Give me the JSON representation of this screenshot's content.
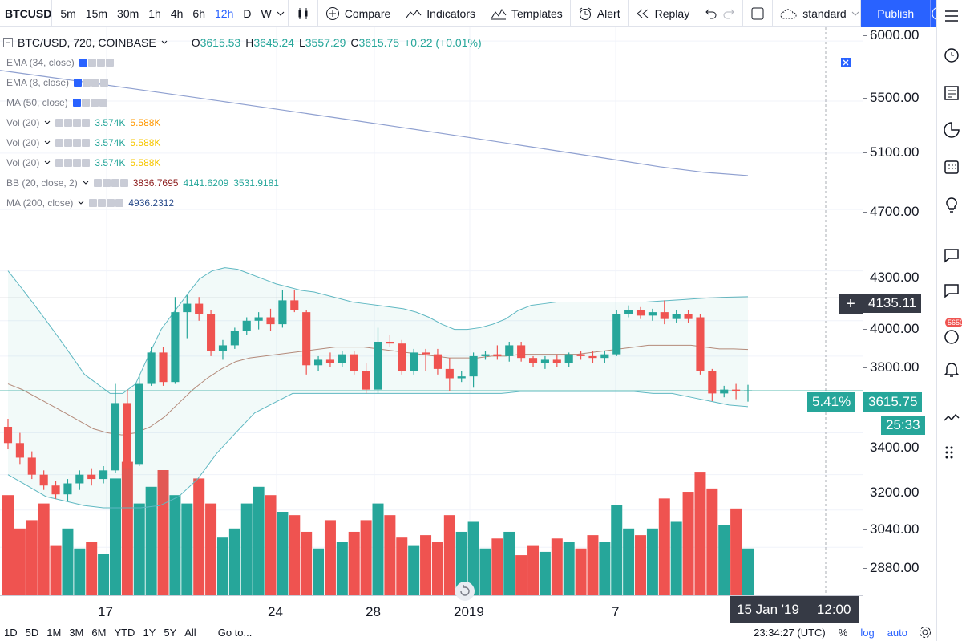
{
  "toolbar": {
    "symbol": "BTCUSD",
    "timeframes": [
      "5m",
      "15m",
      "30m",
      "1h",
      "4h",
      "6h",
      "12h",
      "D",
      "W"
    ],
    "active_timeframe": "12h",
    "compare_label": "Compare",
    "indicators_label": "Indicators",
    "templates_label": "Templates",
    "alert_label": "Alert",
    "replay_label": "Replay",
    "layout_label": "standard",
    "publish_label": "Publish"
  },
  "legend": {
    "symbol_line": "BTC/USD, 720, COINBASE",
    "o_label": "O",
    "o_value": "3615.53",
    "h_label": "H",
    "h_value": "3645.24",
    "l_label": "L",
    "l_value": "3557.29",
    "c_label": "C",
    "c_value": "3615.75",
    "change": "+0.22 (+0.01%)",
    "indicators": [
      {
        "name": "EMA (34, close)"
      },
      {
        "name": "EMA (8, close)"
      },
      {
        "name": "MA (50, close)"
      },
      {
        "name": "Vol (20)",
        "v1": "3.574K",
        "v2": "5.588K"
      },
      {
        "name": "Vol (20)",
        "v1": "3.574K",
        "v2": "5.588K"
      },
      {
        "name": "Vol (20)",
        "v1": "3.574K",
        "v2": "5.588K"
      },
      {
        "name": "BB (20, close, 2)",
        "v1": "3836.7695",
        "v2": "4141.6209",
        "v3": "3531.9181"
      },
      {
        "name": "MA (200, close)",
        "v1": "4936.2312"
      }
    ]
  },
  "price_axis": {
    "labels": [
      "6000.00",
      "5500.00",
      "5100.00",
      "4700.00",
      "4300.00",
      "4000.00",
      "3800.00",
      "3400.00",
      "3200.00",
      "3040.00",
      "2880.00"
    ],
    "crosshair_price": "4135.11",
    "change_pct": "5.41%",
    "last_price": "3615.75",
    "countdown": "25:33",
    "alert_count": "5650"
  },
  "time_axis": {
    "labels": [
      "17",
      "24",
      "28",
      "2019",
      "7"
    ],
    "crosshair_date": "15 Jan '19",
    "crosshair_time": "12:00"
  },
  "bottom": {
    "ranges": [
      "1D",
      "5D",
      "1M",
      "3M",
      "6M",
      "YTD",
      "1Y",
      "5Y",
      "All"
    ],
    "goto": "Go to...",
    "clock": "23:34:27 (UTC)",
    "percent": "%",
    "log": "log",
    "auto": "auto"
  },
  "colors": {
    "up": "#26a69a",
    "down": "#ef5350",
    "accent": "#2962ff"
  },
  "chart_data": {
    "type": "candlestick",
    "title": "BTC/USD, 720, COINBASE",
    "interval": "12h",
    "y_scale": "log",
    "ylim": [
      2750,
      6050
    ],
    "x_ticks": [
      "17",
      "24",
      "28",
      "2019",
      "7"
    ],
    "candles": [
      {
        "o": 3430,
        "h": 3470,
        "l": 3320,
        "c": 3350
      },
      {
        "o": 3350,
        "h": 3400,
        "l": 3250,
        "c": 3280
      },
      {
        "o": 3280,
        "h": 3310,
        "l": 3180,
        "c": 3200
      },
      {
        "o": 3200,
        "h": 3220,
        "l": 3130,
        "c": 3150
      },
      {
        "o": 3150,
        "h": 3170,
        "l": 3090,
        "c": 3110
      },
      {
        "o": 3110,
        "h": 3180,
        "l": 3080,
        "c": 3160
      },
      {
        "o": 3160,
        "h": 3220,
        "l": 3130,
        "c": 3200
      },
      {
        "o": 3200,
        "h": 3230,
        "l": 3150,
        "c": 3180
      },
      {
        "o": 3180,
        "h": 3240,
        "l": 3160,
        "c": 3220
      },
      {
        "o": 3220,
        "h": 3650,
        "l": 3210,
        "c": 3550
      },
      {
        "o": 3550,
        "h": 3620,
        "l": 3200,
        "c": 3230
      },
      {
        "o": 3250,
        "h": 3700,
        "l": 3240,
        "c": 3650
      },
      {
        "o": 3650,
        "h": 3850,
        "l": 3640,
        "c": 3820
      },
      {
        "o": 3820,
        "h": 3850,
        "l": 3640,
        "c": 3660
      },
      {
        "o": 3660,
        "h": 4140,
        "l": 3650,
        "c": 4050
      },
      {
        "o": 4050,
        "h": 4150,
        "l": 3900,
        "c": 4100
      },
      {
        "o": 4100,
        "h": 4140,
        "l": 4000,
        "c": 4040
      },
      {
        "o": 4040,
        "h": 4060,
        "l": 3800,
        "c": 3830
      },
      {
        "o": 3830,
        "h": 3890,
        "l": 3780,
        "c": 3860
      },
      {
        "o": 3860,
        "h": 3960,
        "l": 3840,
        "c": 3940
      },
      {
        "o": 3940,
        "h": 4020,
        "l": 3920,
        "c": 4000
      },
      {
        "o": 4000,
        "h": 4050,
        "l": 3950,
        "c": 4020
      },
      {
        "o": 4020,
        "h": 4070,
        "l": 3940,
        "c": 3980
      },
      {
        "o": 3980,
        "h": 4180,
        "l": 3960,
        "c": 4120
      },
      {
        "o": 4120,
        "h": 4180,
        "l": 4050,
        "c": 4060
      },
      {
        "o": 4050,
        "h": 4060,
        "l": 3700,
        "c": 3750
      },
      {
        "o": 3750,
        "h": 3800,
        "l": 3720,
        "c": 3780
      },
      {
        "o": 3780,
        "h": 3820,
        "l": 3740,
        "c": 3760
      },
      {
        "o": 3760,
        "h": 3830,
        "l": 3740,
        "c": 3810
      },
      {
        "o": 3810,
        "h": 3830,
        "l": 3700,
        "c": 3720
      },
      {
        "o": 3720,
        "h": 3760,
        "l": 3600,
        "c": 3620
      },
      {
        "o": 3620,
        "h": 3960,
        "l": 3600,
        "c": 3880
      },
      {
        "o": 3880,
        "h": 3920,
        "l": 3850,
        "c": 3870
      },
      {
        "o": 3870,
        "h": 3890,
        "l": 3700,
        "c": 3720
      },
      {
        "o": 3720,
        "h": 3840,
        "l": 3700,
        "c": 3820
      },
      {
        "o": 3820,
        "h": 3840,
        "l": 3720,
        "c": 3810
      },
      {
        "o": 3810,
        "h": 3840,
        "l": 3700,
        "c": 3730
      },
      {
        "o": 3730,
        "h": 3790,
        "l": 3610,
        "c": 3680
      },
      {
        "o": 3680,
        "h": 3720,
        "l": 3660,
        "c": 3690
      },
      {
        "o": 3690,
        "h": 3820,
        "l": 3630,
        "c": 3800
      },
      {
        "o": 3800,
        "h": 3830,
        "l": 3780,
        "c": 3810
      },
      {
        "o": 3810,
        "h": 3860,
        "l": 3780,
        "c": 3800
      },
      {
        "o": 3800,
        "h": 3880,
        "l": 3770,
        "c": 3860
      },
      {
        "o": 3860,
        "h": 3880,
        "l": 3770,
        "c": 3790
      },
      {
        "o": 3790,
        "h": 3800,
        "l": 3740,
        "c": 3760
      },
      {
        "o": 3760,
        "h": 3800,
        "l": 3730,
        "c": 3780
      },
      {
        "o": 3780,
        "h": 3810,
        "l": 3740,
        "c": 3760
      },
      {
        "o": 3760,
        "h": 3820,
        "l": 3740,
        "c": 3810
      },
      {
        "o": 3810,
        "h": 3830,
        "l": 3780,
        "c": 3800
      },
      {
        "o": 3800,
        "h": 3830,
        "l": 3760,
        "c": 3790
      },
      {
        "o": 3790,
        "h": 3830,
        "l": 3760,
        "c": 3810
      },
      {
        "o": 3810,
        "h": 4060,
        "l": 3800,
        "c": 4040
      },
      {
        "o": 4040,
        "h": 4090,
        "l": 4020,
        "c": 4060
      },
      {
        "o": 4060,
        "h": 4080,
        "l": 4010,
        "c": 4030
      },
      {
        "o": 4030,
        "h": 4070,
        "l": 4000,
        "c": 4050
      },
      {
        "o": 4050,
        "h": 4120,
        "l": 3980,
        "c": 4010
      },
      {
        "o": 4010,
        "h": 4060,
        "l": 3990,
        "c": 4040
      },
      {
        "o": 4040,
        "h": 4060,
        "l": 3990,
        "c": 4010
      },
      {
        "o": 4020,
        "h": 4040,
        "l": 3700,
        "c": 3720
      },
      {
        "o": 3720,
        "h": 3730,
        "l": 3560,
        "c": 3600
      },
      {
        "o": 3600,
        "h": 3640,
        "l": 3580,
        "c": 3620
      },
      {
        "o": 3620,
        "h": 3650,
        "l": 3570,
        "c": 3610
      },
      {
        "o": 3615.53,
        "h": 3645.24,
        "l": 3557.29,
        "c": 3615.75
      }
    ],
    "volume": [
      60,
      40,
      45,
      55,
      30,
      40,
      28,
      32,
      25,
      70,
      80,
      55,
      65,
      75,
      60,
      55,
      70,
      55,
      35,
      40,
      55,
      65,
      60,
      50,
      48,
      38,
      28,
      45,
      32,
      38,
      45,
      55,
      48,
      35,
      30,
      36,
      32,
      48,
      38,
      44,
      28,
      34,
      38,
      24,
      30,
      26,
      34,
      32,
      28,
      36,
      32,
      54,
      40,
      36,
      40,
      58,
      44,
      62,
      74,
      64,
      42,
      52,
      28
    ],
    "volume_ylim": [
      0,
      100
    ],
    "bb_upper": [
      4300,
      4200,
      4100,
      4000,
      3900,
      3800,
      3700,
      3650,
      3600,
      3600,
      3650,
      3800,
      3950,
      4050,
      4150,
      4250,
      4300,
      4320,
      4310,
      4280,
      4250,
      4220,
      4200,
      4180,
      4170,
      4150,
      4130,
      4110,
      4100,
      4090,
      4080,
      4070,
      4050,
      4020,
      3980,
      3950,
      3950,
      3960,
      3980,
      4010,
      4060,
      4090,
      4100,
      4110,
      4110,
      4110,
      4110,
      4110,
      4110,
      4110,
      4110,
      4115,
      4120,
      4125,
      4130,
      4135,
      4138,
      4140,
      4141.6209
    ],
    "bb_basis": [
      3650,
      3620,
      3580,
      3540,
      3500,
      3460,
      3420,
      3400,
      3390,
      3400,
      3430,
      3480,
      3550,
      3620,
      3680,
      3730,
      3770,
      3790,
      3800,
      3810,
      3820,
      3830,
      3840,
      3850,
      3850,
      3850,
      3840,
      3830,
      3820,
      3810,
      3800,
      3790,
      3790,
      3790,
      3800,
      3800,
      3810,
      3810,
      3810,
      3810,
      3810,
      3820,
      3830,
      3840,
      3850,
      3860,
      3860,
      3860,
      3860,
      3850,
      3840,
      3840,
      3836.7695
    ],
    "bb_lower": [
      3200,
      3150,
      3100,
      3080,
      3060,
      3050,
      3050,
      3050,
      3060,
      3100,
      3180,
      3300,
      3400,
      3500,
      3550,
      3600,
      3600,
      3600,
      3600,
      3600,
      3600,
      3600,
      3600,
      3600,
      3600,
      3600,
      3600,
      3610,
      3610,
      3610,
      3610,
      3610,
      3610,
      3610,
      3600,
      3600,
      3580,
      3560,
      3540,
      3531.9181
    ],
    "ma200": [
      5750,
      5700,
      5650,
      5600,
      5550,
      5500,
      5450,
      5400,
      5350,
      5300,
      5250,
      5200,
      5150,
      5100,
      5050,
      5000,
      4960,
      4936.2312
    ]
  }
}
